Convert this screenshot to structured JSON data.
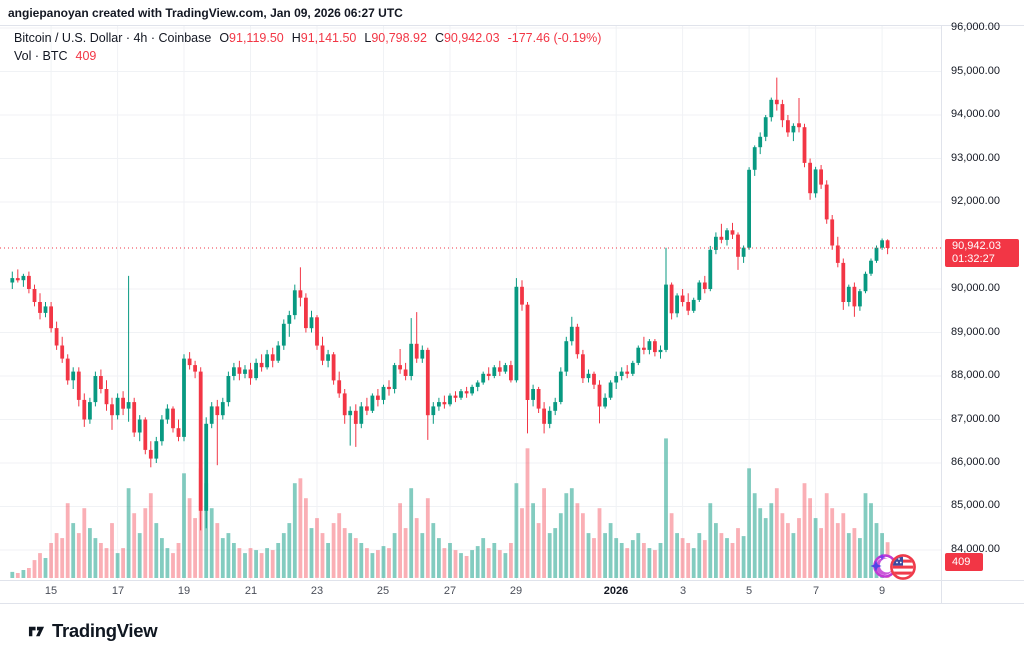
{
  "header": {
    "attribution": "angiepanoyan created with TradingView.com, Jan 09, 2026 06:27 UTC"
  },
  "legend": {
    "title": "Bitcoin / U.S. Dollar · 4h · Coinbase",
    "open_label": "O",
    "open": "91,119.50",
    "high_label": "H",
    "high": "91,141.50",
    "low_label": "L",
    "low": "90,798.92",
    "close_label": "C",
    "close": "90,942.03",
    "change": "-177.46 (-0.19%)",
    "volume_label": "Vol · BTC",
    "volume": "409"
  },
  "price_scale": {
    "last_price_label": "90,942.03",
    "countdown": "01:32:27",
    "volume_badge": "409"
  },
  "footer": {
    "brand": "TradingView"
  },
  "icons": {
    "sticker_left": "dizzy-star-emoji",
    "sticker_right": "us-flag-emoji"
  },
  "chart_data": {
    "type": "candlestick",
    "title": "Bitcoin / U.S. Dollar · 4h · Coinbase",
    "symbol": "Bitcoin / U.S. Dollar",
    "interval": "4h",
    "exchange": "Coinbase",
    "current_bar": {
      "open": 91119.5,
      "high": 91141.5,
      "low": 90798.92,
      "close": 90942.03,
      "change": -177.46,
      "change_pct": -0.19,
      "volume_btc": 409
    },
    "last_price": 90942.03,
    "countdown": "01:32:27",
    "colors": {
      "up": "#089981",
      "down": "#f23645",
      "vol_up": "rgba(8,153,129,0.5)",
      "vol_down": "rgba(242,54,69,0.4)",
      "accent": "#f23645"
    },
    "y_axis": {
      "min": 84000,
      "max": 96000,
      "ticks": [
        {
          "label": "96,000.00",
          "value": 96000
        },
        {
          "label": "95,000.00",
          "value": 95000
        },
        {
          "label": "94,000.00",
          "value": 94000
        },
        {
          "label": "93,000.00",
          "value": 93000
        },
        {
          "label": "92,000.00",
          "value": 92000
        },
        {
          "label": "90,000.00",
          "value": 90000
        },
        {
          "label": "89,000.00",
          "value": 89000
        },
        {
          "label": "88,000.00",
          "value": 88000
        },
        {
          "label": "87,000.00",
          "value": 87000
        },
        {
          "label": "86,000.00",
          "value": 86000
        },
        {
          "label": "85,000.00",
          "value": 85000
        },
        {
          "label": "84,000.00",
          "value": 84000
        }
      ]
    },
    "x_axis": {
      "ticks": [
        {
          "label": "15",
          "i": 7,
          "bold": false
        },
        {
          "label": "17",
          "i": 19,
          "bold": false
        },
        {
          "label": "19",
          "i": 31,
          "bold": false
        },
        {
          "label": "21",
          "i": 43,
          "bold": false
        },
        {
          "label": "23",
          "i": 55,
          "bold": false
        },
        {
          "label": "25",
          "i": 67,
          "bold": false
        },
        {
          "label": "27",
          "i": 79,
          "bold": false
        },
        {
          "label": "29",
          "i": 91,
          "bold": false
        },
        {
          "label": "2026",
          "i": 109,
          "bold": true
        },
        {
          "label": "3",
          "i": 121,
          "bold": false
        },
        {
          "label": "5",
          "i": 133,
          "bold": false
        },
        {
          "label": "7",
          "i": 145,
          "bold": false
        },
        {
          "label": "9",
          "i": 157,
          "bold": false
        }
      ]
    },
    "candles": [
      [
        90150,
        90400,
        90000,
        90250
      ],
      [
        90250,
        90450,
        90150,
        90200
      ],
      [
        90200,
        90350,
        90050,
        90300
      ],
      [
        90300,
        90400,
        89900,
        90000
      ],
      [
        90000,
        90100,
        89600,
        89700
      ],
      [
        89700,
        89900,
        89300,
        89450
      ],
      [
        89450,
        89700,
        89350,
        89600
      ],
      [
        89600,
        89700,
        89000,
        89100
      ],
      [
        89100,
        89250,
        88600,
        88700
      ],
      [
        88700,
        88900,
        88300,
        88400
      ],
      [
        88400,
        88500,
        87800,
        87900
      ],
      [
        87900,
        88200,
        87700,
        88100
      ],
      [
        88100,
        88200,
        87300,
        87450
      ],
      [
        87450,
        87600,
        86830,
        87000
      ],
      [
        87000,
        87500,
        86900,
        87400
      ],
      [
        87400,
        88100,
        87300,
        88000
      ],
      [
        88000,
        88150,
        87600,
        87700
      ],
      [
        87700,
        87900,
        87200,
        87350
      ],
      [
        87350,
        87500,
        86760,
        87100
      ],
      [
        87100,
        87600,
        87000,
        87500
      ],
      [
        87500,
        87650,
        87100,
        87250
      ],
      [
        87250,
        90300,
        86950,
        87400
      ],
      [
        87400,
        87500,
        86600,
        86700
      ],
      [
        86700,
        87100,
        86500,
        87000
      ],
      [
        87000,
        87050,
        86200,
        86300
      ],
      [
        86300,
        86500,
        85900,
        86100
      ],
      [
        86100,
        86600,
        86000,
        86500
      ],
      [
        86500,
        87100,
        86400,
        87000
      ],
      [
        87000,
        87350,
        86900,
        87250
      ],
      [
        87250,
        87300,
        86700,
        86800
      ],
      [
        86800,
        87000,
        86500,
        86600
      ],
      [
        86600,
        88500,
        86500,
        88400
      ],
      [
        88400,
        88550,
        88150,
        88250
      ],
      [
        88250,
        88350,
        87950,
        88100
      ],
      [
        88100,
        88200,
        84450,
        84900
      ],
      [
        84900,
        87050,
        84500,
        86900
      ],
      [
        86900,
        87400,
        86800,
        87300
      ],
      [
        87300,
        87450,
        85950,
        87100
      ],
      [
        87100,
        87500,
        87000,
        87400
      ],
      [
        87400,
        88100,
        87300,
        88000
      ],
      [
        88000,
        88300,
        87900,
        88200
      ],
      [
        88200,
        88350,
        87900,
        88050
      ],
      [
        88050,
        88250,
        87950,
        88150
      ],
      [
        88150,
        88300,
        87800,
        87950
      ],
      [
        87950,
        88400,
        87900,
        88300
      ],
      [
        88300,
        88500,
        88100,
        88200
      ],
      [
        88200,
        88600,
        88150,
        88500
      ],
      [
        88500,
        88650,
        88200,
        88350
      ],
      [
        88350,
        88800,
        88300,
        88700
      ],
      [
        88700,
        89300,
        88600,
        89200
      ],
      [
        89200,
        89500,
        88900,
        89400
      ],
      [
        89400,
        90100,
        89300,
        89970
      ],
      [
        89970,
        90500,
        89600,
        89800
      ],
      [
        89800,
        89900,
        89000,
        89100
      ],
      [
        89100,
        89500,
        89000,
        89350
      ],
      [
        89350,
        89400,
        88600,
        88700
      ],
      [
        88700,
        88900,
        88250,
        88350
      ],
      [
        88350,
        88600,
        88200,
        88500
      ],
      [
        88500,
        88550,
        87800,
        87900
      ],
      [
        87900,
        88100,
        87500,
        87600
      ],
      [
        87600,
        87700,
        86900,
        87100
      ],
      [
        87100,
        87300,
        86400,
        87200
      ],
      [
        87200,
        87350,
        86370,
        86900
      ],
      [
        86900,
        87400,
        86800,
        87300
      ],
      [
        87300,
        87500,
        87100,
        87200
      ],
      [
        87200,
        87600,
        87150,
        87550
      ],
      [
        87550,
        87700,
        87300,
        87450
      ],
      [
        87450,
        87800,
        87350,
        87750
      ],
      [
        87750,
        87900,
        87550,
        87700
      ],
      [
        87700,
        88300,
        87600,
        88250
      ],
      [
        88250,
        88620,
        88050,
        88150
      ],
      [
        88150,
        88300,
        87900,
        88000
      ],
      [
        88000,
        89330,
        87900,
        88740
      ],
      [
        88740,
        89470,
        88300,
        88400
      ],
      [
        88400,
        88700,
        88300,
        88600
      ],
      [
        88600,
        88650,
        86530,
        87100
      ],
      [
        87100,
        87400,
        86900,
        87300
      ],
      [
        87300,
        87500,
        87200,
        87400
      ],
      [
        87400,
        87550,
        87250,
        87350
      ],
      [
        87350,
        87600,
        87300,
        87550
      ],
      [
        87550,
        87650,
        87400,
        87500
      ],
      [
        87500,
        87700,
        87450,
        87650
      ],
      [
        87650,
        87750,
        87500,
        87600
      ],
      [
        87600,
        87800,
        87550,
        87750
      ],
      [
        87750,
        87900,
        87650,
        87850
      ],
      [
        87850,
        88100,
        87800,
        88050
      ],
      [
        88050,
        88200,
        87900,
        88000
      ],
      [
        88000,
        88250,
        87950,
        88200
      ],
      [
        88200,
        88350,
        88000,
        88100
      ],
      [
        88100,
        88300,
        88050,
        88250
      ],
      [
        88250,
        88350,
        87850,
        87900
      ],
      [
        87900,
        90250,
        87850,
        90050
      ],
      [
        90050,
        90200,
        89500,
        89640
      ],
      [
        89640,
        89700,
        86680,
        87450
      ],
      [
        87450,
        87800,
        87300,
        87700
      ],
      [
        87700,
        87750,
        87150,
        87250
      ],
      [
        87250,
        87400,
        86680,
        86900
      ],
      [
        86900,
        87300,
        86800,
        87200
      ],
      [
        87200,
        87500,
        87100,
        87400
      ],
      [
        87400,
        88200,
        87350,
        88100
      ],
      [
        88100,
        88900,
        88000,
        88800
      ],
      [
        88800,
        89360,
        88700,
        89130
      ],
      [
        89130,
        89200,
        88400,
        88500
      ],
      [
        88500,
        88600,
        87840,
        87950
      ],
      [
        87950,
        88150,
        87850,
        88050
      ],
      [
        88050,
        88100,
        87700,
        87800
      ],
      [
        87800,
        87900,
        86910,
        87300
      ],
      [
        87300,
        87600,
        87250,
        87500
      ],
      [
        87500,
        87900,
        87450,
        87850
      ],
      [
        87850,
        88100,
        87700,
        88000
      ],
      [
        88000,
        88200,
        87900,
        88100
      ],
      [
        88100,
        88250,
        87950,
        88050
      ],
      [
        88050,
        88350,
        88000,
        88300
      ],
      [
        88300,
        88700,
        88250,
        88650
      ],
      [
        88650,
        88900,
        88500,
        88600
      ],
      [
        88600,
        88850,
        88500,
        88800
      ],
      [
        88800,
        88850,
        88450,
        88550
      ],
      [
        88550,
        88700,
        88400,
        88600
      ],
      [
        88600,
        90950,
        88550,
        90100
      ],
      [
        90100,
        90150,
        89300,
        89440
      ],
      [
        89440,
        89900,
        89350,
        89850
      ],
      [
        89850,
        90000,
        89600,
        89700
      ],
      [
        89700,
        89900,
        89400,
        89500
      ],
      [
        89500,
        89800,
        89450,
        89750
      ],
      [
        89750,
        90200,
        89700,
        90150
      ],
      [
        90150,
        90300,
        89900,
        90000
      ],
      [
        90000,
        90990,
        89950,
        90900
      ],
      [
        90900,
        91300,
        90800,
        91200
      ],
      [
        91200,
        91500,
        91050,
        91130
      ],
      [
        91130,
        91400,
        91000,
        91350
      ],
      [
        91350,
        91520,
        91150,
        91250
      ],
      [
        91250,
        91300,
        90440,
        90740
      ],
      [
        90740,
        91000,
        90600,
        90950
      ],
      [
        90950,
        92800,
        90900,
        92740
      ],
      [
        92740,
        93300,
        92600,
        93260
      ],
      [
        93260,
        93600,
        93100,
        93500
      ],
      [
        93500,
        94000,
        93400,
        93950
      ],
      [
        93950,
        94400,
        93850,
        94350
      ],
      [
        94350,
        94860,
        94100,
        94250
      ],
      [
        94250,
        94350,
        93720,
        93880
      ],
      [
        93880,
        94000,
        93500,
        93600
      ],
      [
        93600,
        93810,
        93400,
        93750
      ],
      [
        93810,
        94390,
        93600,
        93720
      ],
      [
        93720,
        93800,
        92800,
        92900
      ],
      [
        92900,
        93000,
        92050,
        92200
      ],
      [
        92200,
        92810,
        92100,
        92750
      ],
      [
        92750,
        92850,
        92300,
        92400
      ],
      [
        92400,
        92500,
        91500,
        91600
      ],
      [
        91600,
        91700,
        90900,
        91000
      ],
      [
        91000,
        91200,
        90500,
        90600
      ],
      [
        90600,
        90700,
        89520,
        89700
      ],
      [
        89700,
        90100,
        89600,
        90050
      ],
      [
        90050,
        90150,
        89360,
        89600
      ],
      [
        89600,
        90000,
        89500,
        89950
      ],
      [
        89950,
        90400,
        89900,
        90350
      ],
      [
        90350,
        90700,
        90300,
        90650
      ],
      [
        90650,
        91000,
        90600,
        90950
      ],
      [
        90950,
        91160,
        90900,
        91119.5
      ],
      [
        91119.5,
        91141.5,
        90798.92,
        90942.03
      ]
    ],
    "volumes": [
      70,
      57,
      91,
      114,
      205,
      285,
      228,
      400,
      513,
      456,
      855,
      627,
      513,
      798,
      570,
      456,
      400,
      342,
      627,
      285,
      342,
      1026,
      741,
      513,
      798,
      969,
      627,
      456,
      342,
      285,
      400,
      1197,
      912,
      684,
      1254,
      1083,
      798,
      627,
      456,
      513,
      400,
      342,
      285,
      342,
      319,
      285,
      342,
      319,
      400,
      513,
      627,
      1083,
      1140,
      912,
      570,
      684,
      513,
      400,
      627,
      741,
      570,
      513,
      456,
      400,
      342,
      285,
      319,
      365,
      342,
      513,
      855,
      570,
      1026,
      684,
      513,
      912,
      627,
      456,
      342,
      400,
      319,
      285,
      251,
      319,
      365,
      456,
      342,
      400,
      319,
      285,
      400,
      1083,
      798,
      1482,
      855,
      627,
      1026,
      513,
      570,
      741,
      969,
      1026,
      855,
      741,
      513,
      456,
      798,
      513,
      627,
      456,
      400,
      342,
      433,
      513,
      400,
      342,
      319,
      400,
      1596,
      741,
      513,
      456,
      400,
      342,
      513,
      433,
      855,
      627,
      513,
      456,
      400,
      570,
      479,
      1254,
      969,
      798,
      684,
      855,
      1026,
      741,
      627,
      513,
      684,
      1083,
      912,
      684,
      570,
      969,
      798,
      627,
      741,
      513,
      570,
      456,
      969,
      855,
      627,
      513,
      409
    ]
  }
}
